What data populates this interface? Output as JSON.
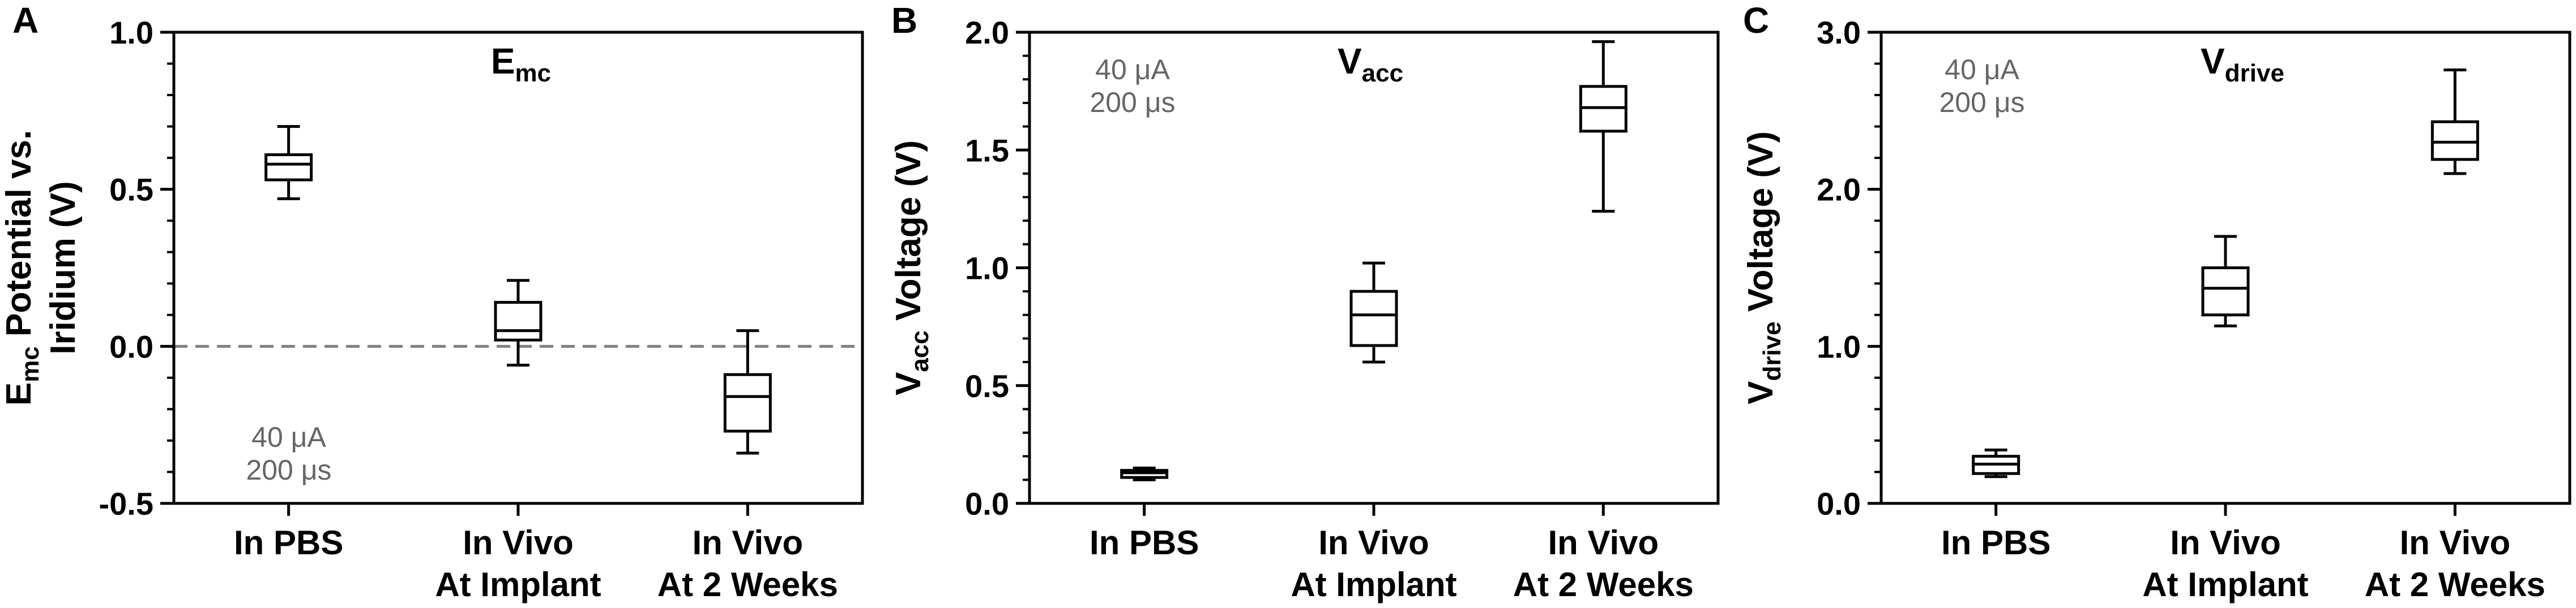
{
  "chart_data": [
    {
      "type": "box",
      "panel_label": "A",
      "title_main": "E",
      "title_sub": "mc",
      "ylabel_main": "E",
      "ylabel_sub": "mc",
      "ylabel_rest": " Potential vs.",
      "ylabel_line2": "Iridium (V)",
      "ylim": [
        -0.5,
        1.0
      ],
      "yticks": [
        -0.5,
        0.0,
        0.5,
        1.0
      ],
      "ytick_labels": [
        "-0.5",
        "0.0",
        "0.5",
        "1.0"
      ],
      "categories": [
        [
          "In PBS"
        ],
        [
          "In Vivo",
          "At Implant"
        ],
        [
          "In Vivo",
          "At 2 Weeks"
        ]
      ],
      "boxes": [
        {
          "min": 0.47,
          "q1": 0.53,
          "median": 0.58,
          "q3": 0.61,
          "max": 0.7
        },
        {
          "min": -0.06,
          "q1": 0.02,
          "median": 0.05,
          "q3": 0.14,
          "max": 0.21
        },
        {
          "min": -0.34,
          "q1": -0.27,
          "median": -0.16,
          "q3": -0.09,
          "max": 0.05
        }
      ],
      "reference_line": {
        "y": 0.0,
        "style": "dashed"
      },
      "annotation": [
        "40 μA",
        "200 μs"
      ],
      "annotation_position": "bottom-left"
    },
    {
      "type": "box",
      "panel_label": "B",
      "title_main": "V",
      "title_sub": "acc",
      "ylabel_main": "V",
      "ylabel_sub": "acc",
      "ylabel_rest": " Voltage (V)",
      "ylim": [
        0.0,
        2.0
      ],
      "yticks": [
        0.0,
        0.5,
        1.0,
        1.5,
        2.0
      ],
      "ytick_labels": [
        "0.0",
        "0.5",
        "1.0",
        "1.5",
        "2.0"
      ],
      "categories": [
        [
          "In PBS"
        ],
        [
          "In Vivo",
          "At Implant"
        ],
        [
          "In Vivo",
          "At 2 Weeks"
        ]
      ],
      "boxes": [
        {
          "min": 0.1,
          "q1": 0.11,
          "median": 0.13,
          "q3": 0.14,
          "max": 0.15
        },
        {
          "min": 0.6,
          "q1": 0.67,
          "median": 0.8,
          "q3": 0.9,
          "max": 1.02
        },
        {
          "min": 1.24,
          "q1": 1.58,
          "median": 1.68,
          "q3": 1.77,
          "max": 1.96
        }
      ],
      "annotation": [
        "40 μA",
        "200 μs"
      ],
      "annotation_position": "top-left"
    },
    {
      "type": "box",
      "panel_label": "C",
      "title_main": "V",
      "title_sub": "drive",
      "ylabel_main": "V",
      "ylabel_sub": "drive",
      "ylabel_rest": " Voltage (V)",
      "ylim": [
        0.0,
        3.0
      ],
      "yticks": [
        0.0,
        1.0,
        2.0,
        3.0
      ],
      "ytick_labels": [
        "0.0",
        "1.0",
        "2.0",
        "3.0"
      ],
      "categories": [
        [
          "In PBS"
        ],
        [
          "In Vivo",
          "At Implant"
        ],
        [
          "In Vivo",
          "At 2 Weeks"
        ]
      ],
      "boxes": [
        {
          "min": 0.17,
          "q1": 0.19,
          "median": 0.25,
          "q3": 0.3,
          "max": 0.34
        },
        {
          "min": 1.13,
          "q1": 1.2,
          "median": 1.37,
          "q3": 1.5,
          "max": 1.7
        },
        {
          "min": 2.1,
          "q1": 2.19,
          "median": 2.3,
          "q3": 2.43,
          "max": 2.76
        }
      ],
      "annotation": [
        "40 μA",
        "200 μs"
      ],
      "annotation_position": "top-left"
    }
  ]
}
